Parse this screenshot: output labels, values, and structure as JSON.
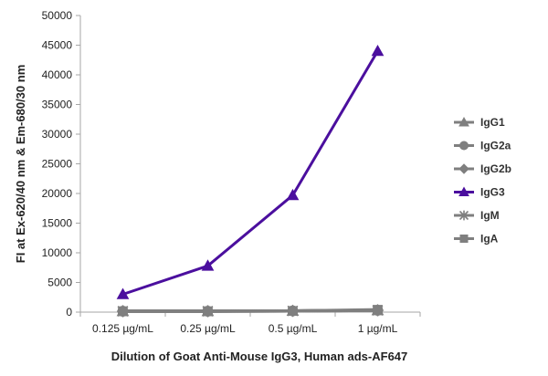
{
  "chart_data": {
    "type": "line",
    "title": "",
    "xlabel": "Dilution of Goat Anti-Mouse IgG3, Human ads-AF647",
    "ylabel": "FI at Ex-620/40 nm & Em-680/30 nm",
    "categories": [
      "0.125 µg/mL",
      "0.25 µg/mL",
      "0.5 µg/mL",
      "1 µg/mL"
    ],
    "ylim": [
      0,
      50000
    ],
    "yticks": [
      "0",
      "5000",
      "10000",
      "15000",
      "20000",
      "25000",
      "30000",
      "35000",
      "40000",
      "45000",
      "50000"
    ],
    "grid": "none",
    "legend": "right",
    "series": [
      {
        "name": "IgG1",
        "values": [
          150,
          150,
          200,
          300
        ],
        "color": "#7f7f7f",
        "marker": "triangle"
      },
      {
        "name": "IgG2a",
        "values": [
          150,
          150,
          200,
          300
        ],
        "color": "#7f7f7f",
        "marker": "circle"
      },
      {
        "name": "IgG2b",
        "values": [
          150,
          150,
          200,
          300
        ],
        "color": "#7f7f7f",
        "marker": "diamond"
      },
      {
        "name": "IgG3",
        "values": [
          3000,
          7800,
          19700,
          44000
        ],
        "color": "#4b0f9e",
        "marker": "triangle"
      },
      {
        "name": "IgM",
        "values": [
          150,
          150,
          200,
          300
        ],
        "color": "#7f7f7f",
        "marker": "star"
      },
      {
        "name": "IgA",
        "values": [
          150,
          150,
          200,
          400
        ],
        "color": "#7f7f7f",
        "marker": "square"
      }
    ]
  }
}
